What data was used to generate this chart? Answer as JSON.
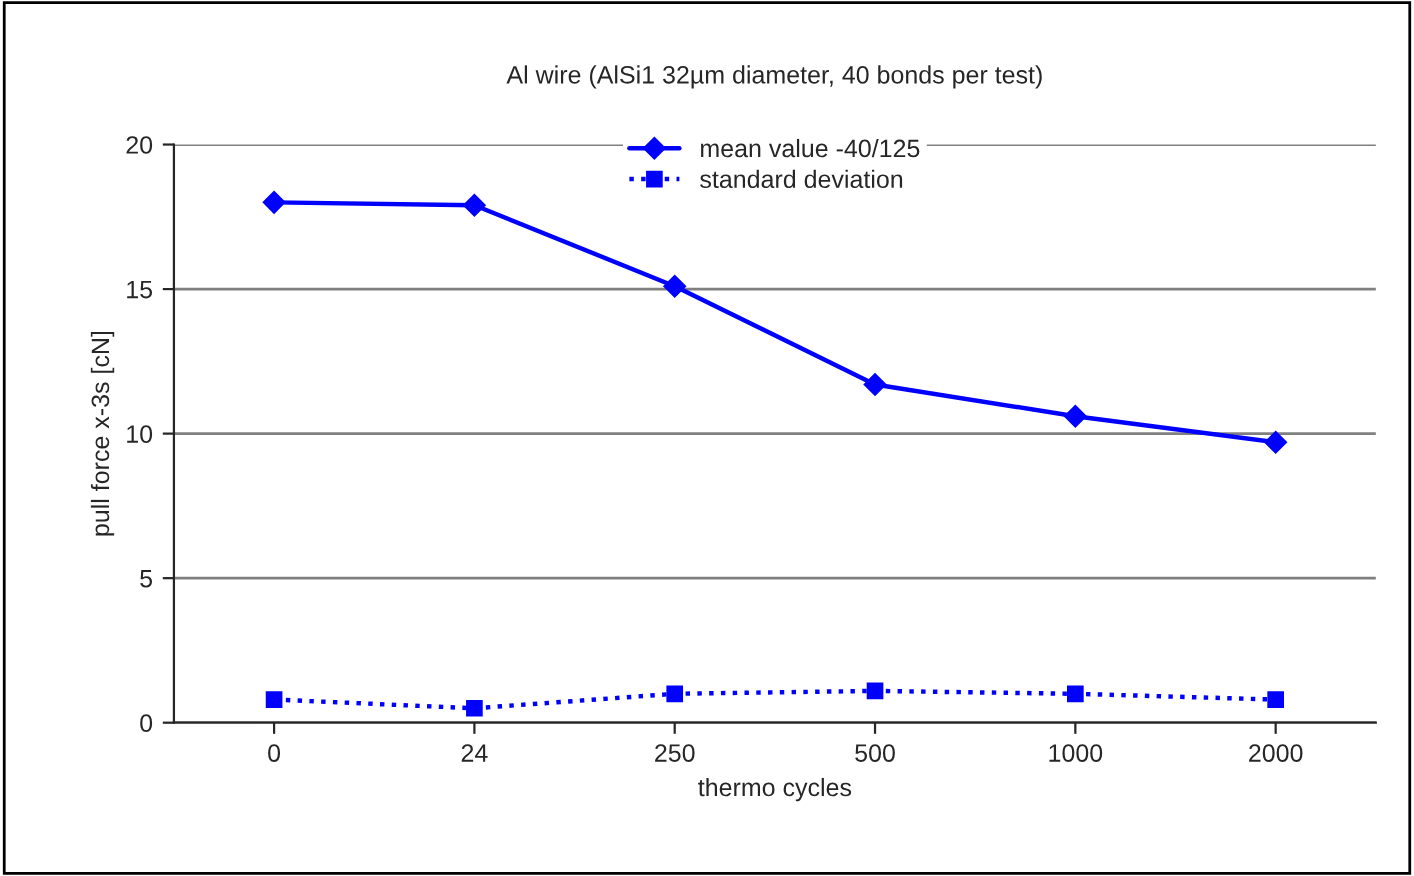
{
  "chart_data": {
    "type": "line",
    "title": "Al wire (AlSi1 32µm diameter, 40 bonds per test)",
    "xlabel": "thermo cycles",
    "ylabel": "pull force x-3s [cN]",
    "categories": [
      "0",
      "24",
      "250",
      "500",
      "1000",
      "2000"
    ],
    "series": [
      {
        "name": "mean value -40/125",
        "color": "#0000ff",
        "values": [
          18.0,
          17.9,
          15.1,
          11.7,
          10.6,
          9.7
        ],
        "marker": "diamond",
        "line_style": "solid"
      },
      {
        "name": "standard deviation",
        "color": "#0000ff",
        "values": [
          0.8,
          0.5,
          1.0,
          1.1,
          1.0,
          0.8
        ],
        "marker": "square",
        "line_style": "dotted"
      }
    ],
    "ylim": [
      0,
      20
    ],
    "yticks": [
      0,
      5,
      10,
      15,
      20
    ],
    "grid": "y",
    "legend": "top"
  }
}
